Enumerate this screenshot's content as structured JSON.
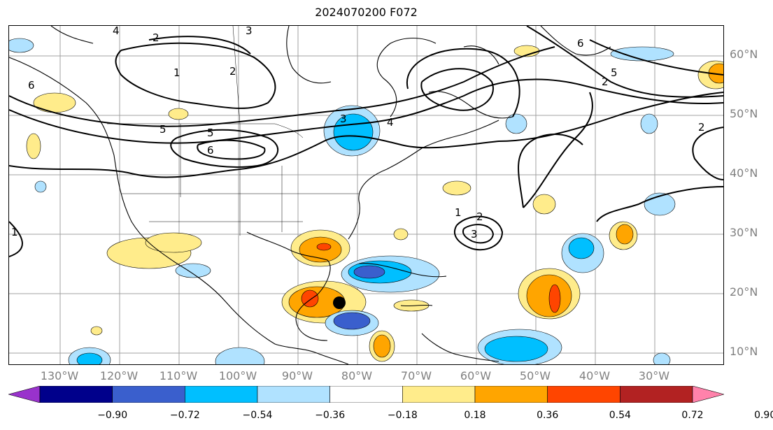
{
  "title": "2024070200 F072",
  "lat_labels": [
    "60°N",
    "50°N",
    "40°N",
    "30°N",
    "20°N",
    "10°N"
  ],
  "lon_labels": [
    "130°W",
    "120°W",
    "110°W",
    "100°W",
    "90°W",
    "80°W",
    "70°W",
    "60°W",
    "50°W",
    "40°W",
    "30°W"
  ],
  "contour_labels": [
    "4",
    "2",
    "1",
    "3",
    "5",
    "6",
    "2",
    "3",
    "4",
    "6",
    "5",
    "2",
    "1",
    "3",
    "2",
    "1",
    "6",
    "5",
    "2"
  ],
  "colorbar": {
    "ticks": [
      "−0.90",
      "−0.72",
      "−0.54",
      "−0.36",
      "−0.18",
      "0.18",
      "0.36",
      "0.54",
      "0.72",
      "0.90"
    ],
    "colors": [
      "#9932cc",
      "#00008b",
      "#3a5fcd",
      "#00bfff",
      "#b0e2ff",
      "#ffffff",
      "#ffec8b",
      "#ffa500",
      "#ff4500",
      "#b22222",
      "#ff82ab"
    ]
  },
  "colors": {
    "ocean": "#ffffff",
    "coast": "#000000",
    "grid": "#a0a0a0",
    "label": "#808080"
  }
}
